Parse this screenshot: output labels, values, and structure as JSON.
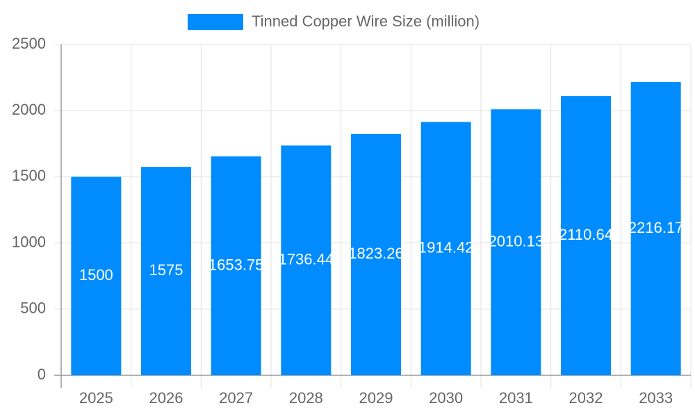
{
  "chart_data": {
    "type": "bar",
    "categories": [
      "2025",
      "2026",
      "2027",
      "2028",
      "2029",
      "2030",
      "2031",
      "2032",
      "2033"
    ],
    "series": [
      {
        "name": "Tinned Copper Wire Size (million)",
        "color": "#008cff",
        "values": [
          1500,
          1575,
          1653.75,
          1736.44,
          1823.26,
          1914.42,
          2010.13,
          2110.64,
          2216.17
        ]
      }
    ],
    "ylim": [
      0,
      2500
    ],
    "yticks": [
      0,
      500,
      1000,
      1500,
      2000,
      2500
    ],
    "grid": true,
    "legend": "top"
  }
}
